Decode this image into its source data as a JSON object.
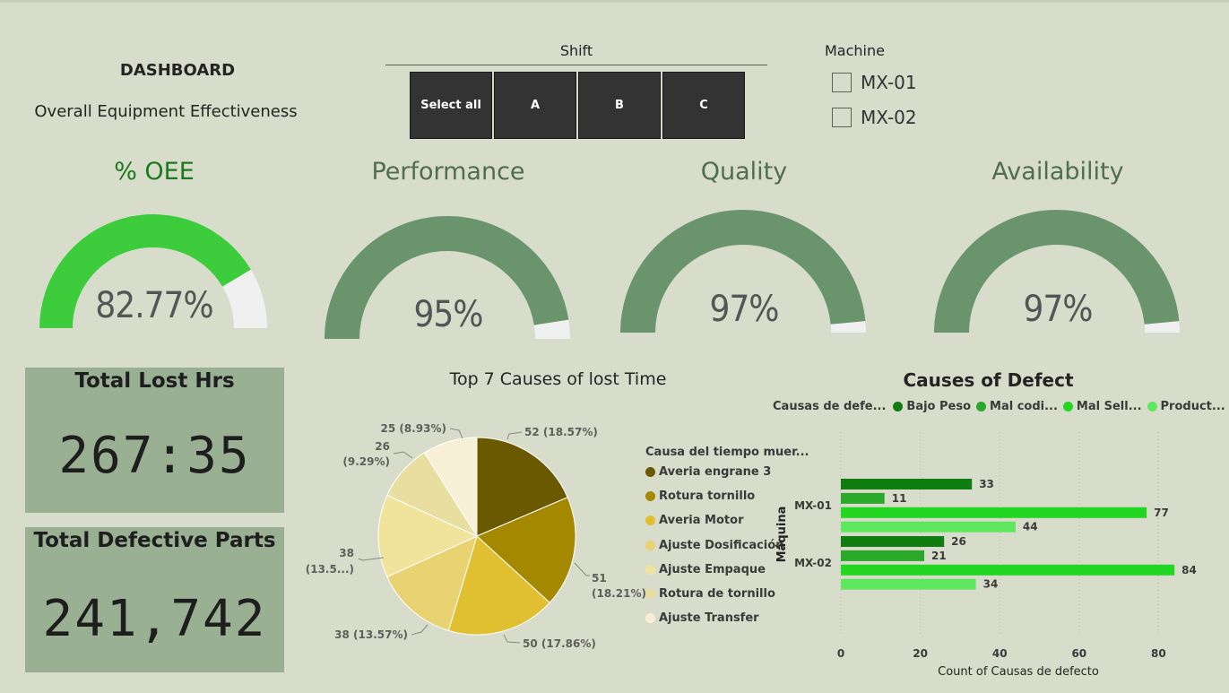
{
  "header": {
    "title": "DASHBOARD",
    "subtitle": "Overall Equipment Effectiveness"
  },
  "shift": {
    "label": "Shift",
    "options": [
      "Select all",
      "A",
      "B",
      "C"
    ]
  },
  "machine": {
    "label": "Machine",
    "options": [
      "MX-01",
      "MX-02"
    ]
  },
  "gauges": [
    {
      "title": "% OEE",
      "value_text": "82.77%",
      "fraction": 0.8277,
      "fill": "#3ccc3c",
      "title_color": "#1c7a1c"
    },
    {
      "title": "Performance",
      "value_text": "95%",
      "fraction": 0.95,
      "fill": "#6a946c",
      "title_color": "#4f6e4f"
    },
    {
      "title": "Quality",
      "value_text": "97%",
      "fraction": 0.97,
      "fill": "#6a946c",
      "title_color": "#4f6e4f"
    },
    {
      "title": "Availability",
      "value_text": "97%",
      "fraction": 0.97,
      "fill": "#6a946c",
      "title_color": "#4f6e4f"
    }
  ],
  "cards": {
    "lost_hrs": {
      "title": "Total Lost Hrs",
      "value": "267:35"
    },
    "defective": {
      "title": "Total Defective Parts",
      "value": "241,742"
    }
  },
  "pie": {
    "title": "Top 7 Causes of lost Time",
    "legend_title": "Causa del tiempo muer...",
    "labels": [
      "52 (18.57%)",
      "51",
      "(18.21%)",
      "50 (17.86%)",
      "38 (13.57%)",
      "38",
      "(13.5...)",
      "26",
      "(9.29%)",
      "25 (8.93%)"
    ]
  },
  "bar": {
    "title": "Causes of Defect",
    "legend_title": "Causas de defe...",
    "y_axis_label": "Máquina",
    "x_axis_label": "Count of Causas de defecto"
  },
  "colors": {
    "background": "#d7dccb",
    "card": "#9ab093",
    "gauge_track": "#f0f0f0"
  },
  "chart_data": [
    {
      "type": "pie",
      "title": "Top 7 Causes of lost Time",
      "legend_title": "Causa del tiempo muer...",
      "categories": [
        "Averia engrane 3",
        "Rotura tornillo",
        "Averia Motor",
        "Ajuste Dosificación",
        "Ajuste Empaque",
        "Rotura de tornillo",
        "Ajuste Transfer"
      ],
      "values": [
        52,
        51,
        50,
        38,
        38,
        26,
        25
      ],
      "percent_labels": [
        "18.57%",
        "18.21%",
        "17.86%",
        "13.57%",
        "13.5...",
        "9.29%",
        "8.93%"
      ],
      "colors": [
        "#6b5900",
        "#a38800",
        "#e0c030",
        "#e8d272",
        "#f0e39c",
        "#e8dea0",
        "#f7f0d6"
      ],
      "legend_position": "right"
    },
    {
      "type": "bar",
      "orientation": "horizontal",
      "title": "Causes of Defect",
      "categories": [
        "MX-01",
        "MX-02"
      ],
      "series": [
        {
          "name": "Bajo Peso",
          "values": [
            33,
            26
          ],
          "color": "#0f7d0f"
        },
        {
          "name": "Mal codi...",
          "values": [
            11,
            21
          ],
          "color": "#2aa82a"
        },
        {
          "name": "Mal Sell...",
          "values": [
            77,
            84
          ],
          "color": "#22d622"
        },
        {
          "name": "Product...",
          "values": [
            44,
            34
          ],
          "color": "#5fe85f"
        }
      ],
      "xlabel": "Count of Causas de defecto",
      "ylabel": "Máquina",
      "xlim": [
        0,
        84
      ],
      "xticks": [
        0,
        20,
        40,
        60,
        80
      ],
      "grid": true,
      "legend_position": "top"
    }
  ]
}
